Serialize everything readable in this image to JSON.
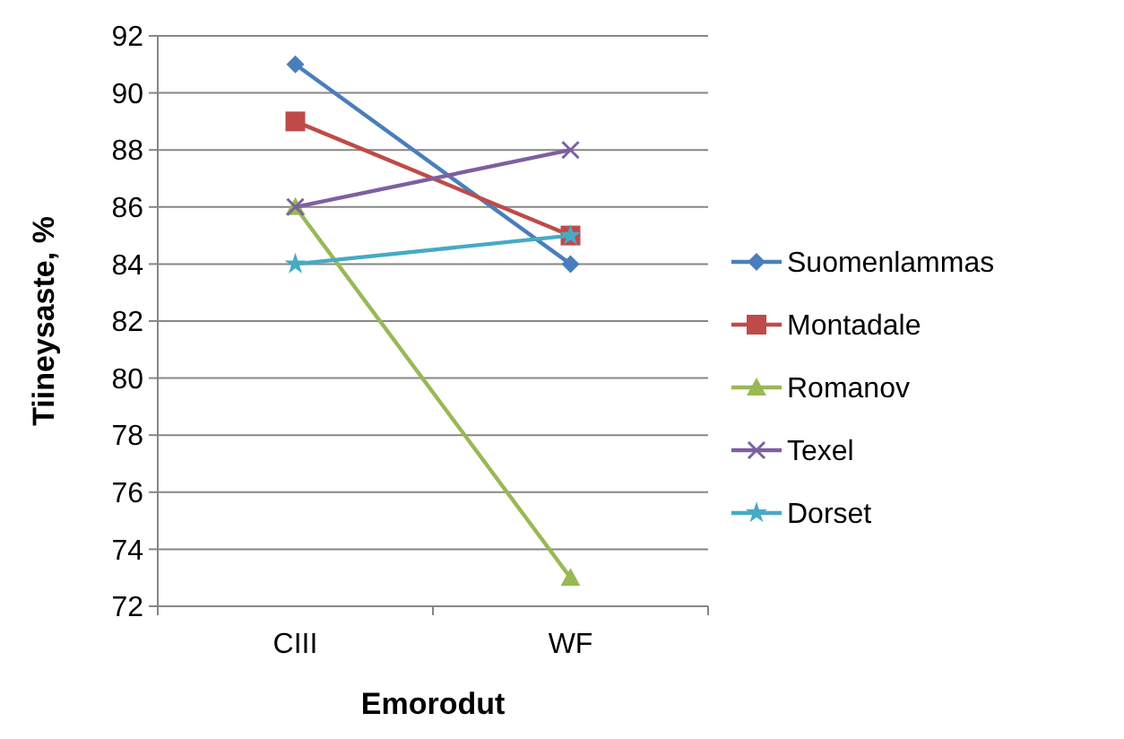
{
  "chart_data": {
    "type": "line",
    "xlabel": "Emorodut",
    "ylabel": "Tiineysaste, %",
    "categories": [
      "CIII",
      "WF"
    ],
    "ylim": [
      72,
      92
    ],
    "yticks": [
      72,
      74,
      76,
      78,
      80,
      82,
      84,
      86,
      88,
      90,
      92
    ],
    "grid": "y",
    "legend": "right",
    "line_style": "solid",
    "series": [
      {
        "name": "Suomenlammas",
        "color": "#4a7ebb",
        "marker": "diamond",
        "values": [
          91,
          84
        ]
      },
      {
        "name": "Montadale",
        "color": "#be4b48",
        "marker": "square",
        "values": [
          89,
          85
        ]
      },
      {
        "name": "Romanov",
        "color": "#98b954",
        "marker": "triangle",
        "values": [
          86,
          73
        ]
      },
      {
        "name": "Texel",
        "color": "#7d60a0",
        "marker": "cross",
        "values": [
          86,
          88
        ]
      },
      {
        "name": "Dorset",
        "color": "#46aac5",
        "marker": "star",
        "values": [
          84,
          85
        ]
      }
    ]
  }
}
